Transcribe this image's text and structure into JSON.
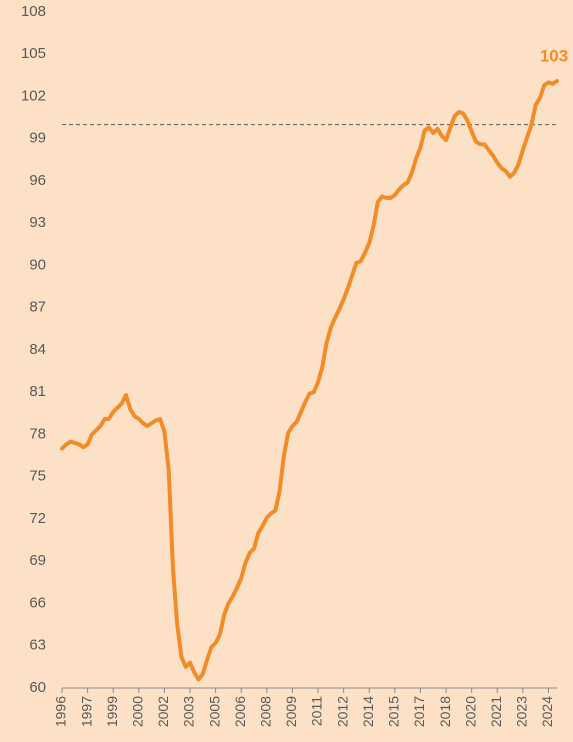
{
  "chart_data": {
    "type": "line",
    "categories": [
      "1996",
      null,
      null,
      null,
      null,
      null,
      "1997",
      null,
      null,
      null,
      null,
      null,
      "1999",
      null,
      null,
      null,
      null,
      null,
      "2000",
      null,
      null,
      null,
      null,
      null,
      "2002",
      null,
      null,
      null,
      null,
      null,
      "2003",
      null,
      null,
      null,
      null,
      null,
      "2005",
      null,
      null,
      null,
      null,
      null,
      "2006",
      null,
      null,
      null,
      null,
      null,
      "2008",
      null,
      null,
      null,
      null,
      null,
      "2009",
      null,
      null,
      null,
      null,
      null,
      "2011",
      null,
      null,
      null,
      null,
      null,
      "2012",
      null,
      null,
      null,
      null,
      null,
      "2014",
      null,
      null,
      null,
      null,
      null,
      "2015",
      null,
      null,
      null,
      null,
      null,
      "2017",
      null,
      null,
      null,
      null,
      null,
      "2018",
      null,
      null,
      null,
      null,
      null,
      "2020",
      null,
      null,
      null,
      null,
      null,
      "2021",
      null,
      null,
      null,
      null,
      null,
      "2023",
      null,
      null,
      null,
      null,
      null,
      "2024",
      null,
      null
    ],
    "series": [
      {
        "color": "#f28c28",
        "values": [
          77.0,
          77.3,
          77.5,
          77.4,
          77.3,
          77.1,
          77.3,
          78.0,
          78.3,
          78.6,
          79.1,
          79.1,
          79.6,
          79.9,
          80.2,
          80.8,
          79.8,
          79.3,
          79.1,
          78.8,
          78.6,
          78.8,
          79.0,
          79.1,
          78.2,
          75.5,
          68.5,
          64.5,
          62.2,
          61.5,
          61.8,
          61.1,
          60.6,
          61.0,
          62.0,
          62.9,
          63.2,
          63.8,
          65.2,
          66.0,
          66.5,
          67.1,
          67.8,
          68.9,
          69.6,
          69.9,
          71.0,
          71.5,
          72.1,
          72.4,
          72.6,
          74.0,
          76.5,
          78.1,
          78.6,
          78.9,
          79.6,
          80.3,
          80.9,
          81.0,
          81.7,
          82.8,
          84.5,
          85.6,
          86.3,
          86.9,
          87.6,
          88.4,
          89.3,
          90.2,
          90.3,
          90.9,
          91.6,
          92.8,
          94.5,
          94.9,
          94.8,
          94.8,
          95.0,
          95.4,
          95.7,
          95.9,
          96.6,
          97.6,
          98.4,
          99.6,
          99.8,
          99.4,
          99.7,
          99.2,
          98.9,
          99.8,
          100.6,
          100.9,
          100.8,
          100.3,
          99.5,
          98.8,
          98.6,
          98.6,
          98.2,
          97.8,
          97.3,
          96.9,
          96.7,
          96.3,
          96.6,
          97.2,
          98.2,
          99.1,
          100.0,
          101.4,
          101.9,
          102.8,
          103.0,
          102.9,
          103.1
        ]
      }
    ],
    "ylim": [
      60,
      108
    ],
    "yticks": [
      60,
      63,
      66,
      69,
      72,
      75,
      78,
      81,
      84,
      87,
      90,
      93,
      96,
      99,
      102,
      105,
      108
    ],
    "reference_line": {
      "value": 100,
      "color": "#595959"
    },
    "annotations": [
      {
        "text": "103",
        "value": 103.1
      }
    ]
  }
}
